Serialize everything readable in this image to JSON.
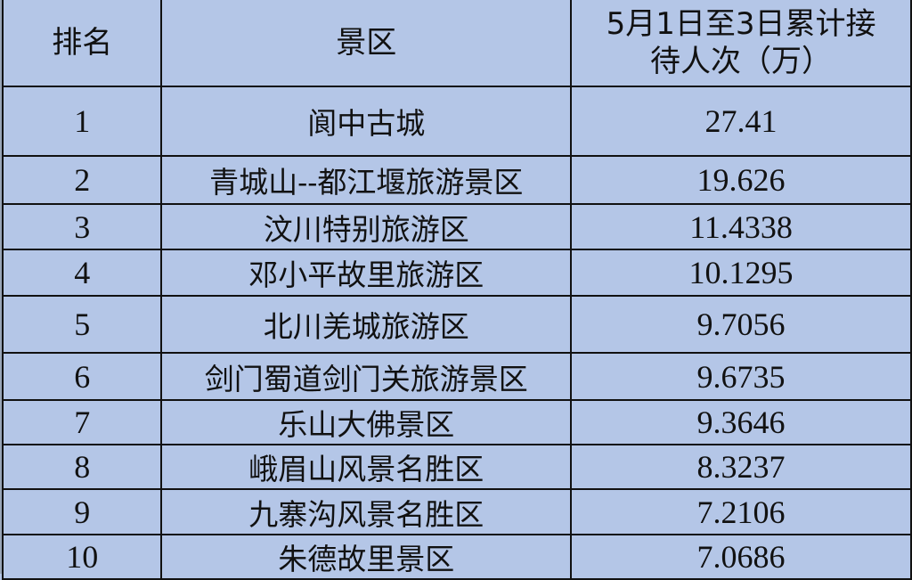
{
  "table": {
    "headers": [
      "排名",
      "景区",
      "5月1日至3日累计接待人次（万）"
    ],
    "header_lines": [
      "5月1日至3日累计接",
      "待人次（万）"
    ],
    "rows": [
      {
        "rank": "1",
        "name": "阆中古城",
        "value": "27.41"
      },
      {
        "rank": "2",
        "name": "青城山--都江堰旅游景区",
        "value": "19.626"
      },
      {
        "rank": "3",
        "name": "汶川特别旅游区",
        "value": "11.4338"
      },
      {
        "rank": "4",
        "name": "邓小平故里旅游区",
        "value": "10.1295"
      },
      {
        "rank": "5",
        "name": "北川羌城旅游区",
        "value": "9.7056"
      },
      {
        "rank": "6",
        "name": "剑门蜀道剑门关旅游景区",
        "value": "9.6735"
      },
      {
        "rank": "7",
        "name": "乐山大佛景区",
        "value": "9.3646"
      },
      {
        "rank": "8",
        "name": "峨眉山风景名胜区",
        "value": "8.3237"
      },
      {
        "rank": "9",
        "name": "九寨沟风景名胜区",
        "value": "7.2106"
      },
      {
        "rank": "10",
        "name": "朱德故里景区",
        "value": "7.0686"
      }
    ]
  },
  "colors": {
    "background": "#b4c6e7",
    "border": "#111111"
  }
}
